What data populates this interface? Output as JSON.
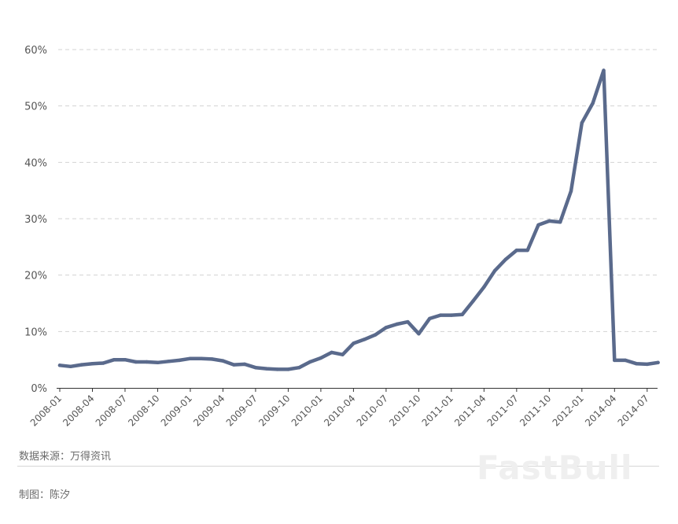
{
  "chart_data": {
    "type": "line",
    "title": "",
    "xlabel": "",
    "ylabel": "",
    "ylim": [
      0,
      60
    ],
    "y_ticks": [
      "0%",
      "10%",
      "20%",
      "30%",
      "40%",
      "50%",
      "60%"
    ],
    "grid": "horizontal-dashed",
    "line_color": "#5a6a8c",
    "x_labels": [
      "2008-01",
      "2008-04",
      "2008-07",
      "2008-10",
      "2009-01",
      "2009-04",
      "2009-07",
      "2009-10",
      "2010-01",
      "2010-04",
      "2010-07",
      "2010-10",
      "2011-01",
      "2011-04",
      "2011-07",
      "2011-10",
      "2012-01",
      "2014-04",
      "2014-07"
    ],
    "series": [
      {
        "values": [
          4.0,
          3.8,
          4.1,
          4.3,
          4.4,
          5.0,
          5.0,
          4.6,
          4.6,
          4.5,
          4.7,
          4.9,
          5.2,
          5.2,
          5.1,
          4.8,
          4.1,
          4.2,
          3.6,
          3.4,
          3.3,
          3.3,
          3.6,
          4.6,
          5.3,
          6.3,
          5.9,
          7.9,
          8.6,
          9.4,
          10.7,
          11.3,
          11.7,
          9.6,
          12.3,
          12.9,
          12.9,
          13.0,
          15.4,
          17.9,
          20.8,
          22.8,
          24.4,
          24.4,
          28.9,
          29.6,
          29.4,
          34.9,
          47.0,
          50.5,
          56.3,
          4.9,
          4.9,
          4.3,
          4.2,
          4.5
        ]
      }
    ]
  },
  "footer": {
    "source": "数据来源：万得资讯",
    "author": "制图：陈汐"
  },
  "watermark": "FastBull"
}
